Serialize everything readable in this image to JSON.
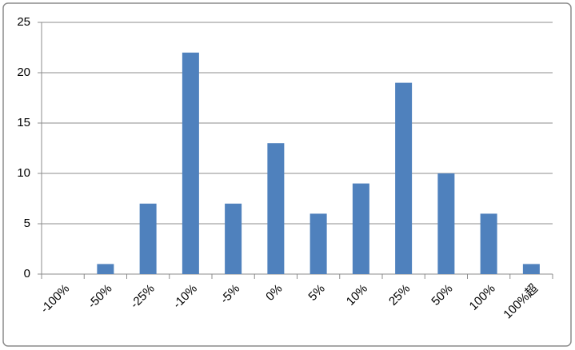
{
  "chart_data": {
    "type": "bar",
    "categories": [
      "-100%",
      "-50%",
      "-25%",
      "-10%",
      "-5%",
      "0%",
      "5%",
      "10%",
      "25%",
      "50%",
      "100%",
      "100%超"
    ],
    "values": [
      0,
      1,
      7,
      22,
      7,
      13,
      6,
      9,
      19,
      10,
      6,
      1
    ],
    "color": "#4f81bd",
    "ylim": [
      0,
      25
    ],
    "yticks": [
      0,
      5,
      10,
      15,
      20,
      25
    ],
    "grid": true
  }
}
